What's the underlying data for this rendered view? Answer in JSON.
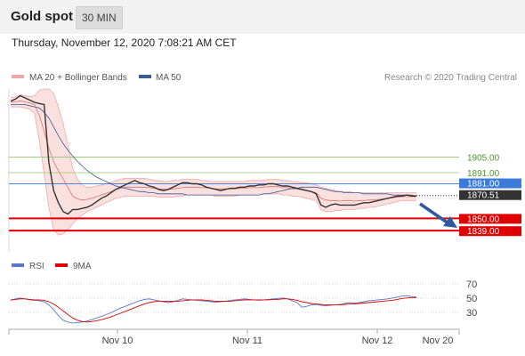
{
  "header": {
    "title": "Gold spot",
    "timeframe": "30 MIN"
  },
  "timestamp": "Thursday, November 12, 2020 7:08:21 AM CET",
  "legend": {
    "ma": "MA 20 + Bollinger Bands",
    "ma50": "MA 50",
    "credit": "Research © 2020 Trading Central"
  },
  "colors": {
    "bollinger": "#f4a5a5",
    "ma50": "#3a5a98",
    "support": "#e00000",
    "resistance_light": "#8fc86a",
    "current": "#3a7ad8",
    "rsi": "#5577cc",
    "rsi_ma": "#e00000"
  },
  "chart_data": [
    {
      "type": "line",
      "title": "Gold spot",
      "ylim": [
        1820,
        1966
      ],
      "x_tick_labels": [
        "Nov 10",
        "Nov 11",
        "Nov 12",
        "Nov 20"
      ],
      "levels": [
        {
          "label": "1905.00",
          "value": 1905,
          "kind": "resistance"
        },
        {
          "label": "1891.00",
          "value": 1891,
          "kind": "resistance"
        },
        {
          "label": "1881.00",
          "value": 1881,
          "kind": "current"
        },
        {
          "label": "1870.51",
          "value": 1870.51,
          "kind": "last"
        },
        {
          "label": "1850.00",
          "value": 1850,
          "kind": "support"
        },
        {
          "label": "1839.00",
          "value": 1839,
          "kind": "support"
        }
      ],
      "price_series": [
        1955,
        1957,
        1960,
        1958,
        1956,
        1954,
        1953,
        1952,
        1900,
        1875,
        1864,
        1856,
        1854,
        1858,
        1858,
        1859,
        1860,
        1862,
        1865,
        1868,
        1870,
        1873,
        1876,
        1878,
        1880,
        1882,
        1884,
        1882,
        1881,
        1879,
        1878,
        1876,
        1875,
        1876,
        1878,
        1880,
        1882,
        1882,
        1881,
        1881,
        1880,
        1878,
        1877,
        1876,
        1875,
        1876,
        1877,
        1877,
        1878,
        1878,
        1879,
        1879,
        1880,
        1880,
        1881,
        1881,
        1880,
        1879,
        1879,
        1878,
        1877,
        1876,
        1875,
        1874,
        1872,
        1862,
        1860,
        1862,
        1863,
        1862,
        1862,
        1862,
        1862,
        1863,
        1864,
        1864,
        1865,
        1866,
        1867,
        1868,
        1869,
        1870,
        1870,
        1871,
        1870,
        1870
      ],
      "ma50_series": [
        1952,
        1952,
        1952,
        1952,
        1951,
        1950,
        1949,
        1945,
        1940,
        1932,
        1924,
        1917,
        1911,
        1906,
        1901,
        1897,
        1893,
        1890,
        1887,
        1885,
        1883,
        1881,
        1879,
        1878,
        1877,
        1876,
        1875,
        1874,
        1874,
        1873,
        1873,
        1872,
        1872,
        1872,
        1872,
        1872,
        1872,
        1871,
        1871,
        1871,
        1871,
        1871,
        1871,
        1871,
        1871,
        1871,
        1871,
        1871,
        1871,
        1871,
        1871,
        1871,
        1871,
        1872,
        1872,
        1873,
        1874,
        1875,
        1876,
        1877,
        1877,
        1878,
        1878,
        1878,
        1878,
        1877,
        1876,
        1875,
        1874,
        1874,
        1873,
        1873,
        1873,
        1873,
        1872,
        1872,
        1872,
        1872,
        1872,
        1872,
        1871,
        1871,
        1871,
        1871,
        1871,
        1870
      ],
      "bb_upper": [
        1958,
        1959,
        1961,
        1960,
        1959,
        1960,
        1965,
        1966,
        1966,
        1962,
        1950,
        1935,
        1915,
        1895,
        1885,
        1880,
        1878,
        1878,
        1879,
        1880,
        1881,
        1882,
        1884,
        1885,
        1886,
        1886,
        1886,
        1886,
        1886,
        1885,
        1884,
        1884,
        1883,
        1883,
        1884,
        1884,
        1885,
        1885,
        1885,
        1885,
        1884,
        1884,
        1883,
        1883,
        1883,
        1883,
        1883,
        1883,
        1883,
        1883,
        1884,
        1884,
        1884,
        1884,
        1885,
        1885,
        1885,
        1884,
        1884,
        1883,
        1883,
        1882,
        1882,
        1881,
        1880,
        1878,
        1877,
        1876,
        1875,
        1874,
        1874,
        1874,
        1873,
        1873,
        1873,
        1873,
        1873,
        1873,
        1873,
        1873,
        1873,
        1873,
        1873,
        1873,
        1873,
        1873
      ],
      "bb_lower": [
        1950,
        1950,
        1950,
        1949,
        1948,
        1944,
        1920,
        1890,
        1860,
        1840,
        1835,
        1836,
        1840,
        1845,
        1850,
        1853,
        1856,
        1858,
        1860,
        1862,
        1864,
        1866,
        1868,
        1869,
        1870,
        1870,
        1870,
        1870,
        1870,
        1870,
        1870,
        1869,
        1869,
        1869,
        1869,
        1870,
        1870,
        1871,
        1871,
        1871,
        1871,
        1871,
        1871,
        1870,
        1870,
        1870,
        1870,
        1870,
        1871,
        1871,
        1871,
        1871,
        1871,
        1872,
        1872,
        1872,
        1872,
        1871,
        1871,
        1870,
        1870,
        1869,
        1868,
        1867,
        1866,
        1858,
        1856,
        1856,
        1857,
        1857,
        1858,
        1858,
        1858,
        1859,
        1859,
        1860,
        1860,
        1861,
        1862,
        1863,
        1864,
        1865,
        1866,
        1866,
        1866,
        1866
      ]
    },
    {
      "type": "line",
      "title": "RSI",
      "ylim": [
        0,
        100
      ],
      "y_tick_labels": [
        "70",
        "50",
        "30"
      ],
      "series": [
        {
          "name": "RSI",
          "values": [
            55,
            58,
            60,
            58,
            56,
            55,
            54,
            52,
            45,
            35,
            22,
            12,
            8,
            6,
            7,
            8,
            10,
            13,
            17,
            20,
            24,
            28,
            33,
            38,
            42,
            46,
            50,
            54,
            57,
            58,
            56,
            54,
            52,
            50,
            52,
            55,
            58,
            57,
            56,
            55,
            54,
            53,
            52,
            51,
            52,
            53,
            55,
            56,
            57,
            58,
            57,
            56,
            55,
            56,
            57,
            58,
            59,
            60,
            58,
            54,
            50,
            40,
            42,
            45,
            46,
            44,
            43,
            44,
            45,
            46,
            48,
            50,
            49,
            50,
            52,
            54,
            55,
            56,
            57,
            58,
            60,
            62,
            64,
            65,
            63,
            62
          ]
        },
        {
          "name": "9MA",
          "values": [
            56,
            57,
            58,
            58,
            57,
            56,
            56,
            55,
            52,
            47,
            40,
            32,
            24,
            17,
            12,
            9,
            8,
            9,
            11,
            13,
            16,
            19,
            23,
            27,
            31,
            35,
            39,
            43,
            47,
            50,
            52,
            53,
            53,
            53,
            53,
            53,
            54,
            55,
            56,
            56,
            56,
            55,
            54,
            53,
            53,
            53,
            53,
            54,
            55,
            56,
            56,
            56,
            56,
            56,
            56,
            57,
            57,
            58,
            58,
            57,
            55,
            52,
            50,
            48,
            47,
            46,
            45,
            45,
            45,
            45,
            46,
            47,
            47,
            48,
            49,
            50,
            51,
            52,
            53,
            54,
            55,
            57,
            59,
            60,
            61,
            61
          ]
        }
      ]
    }
  ]
}
